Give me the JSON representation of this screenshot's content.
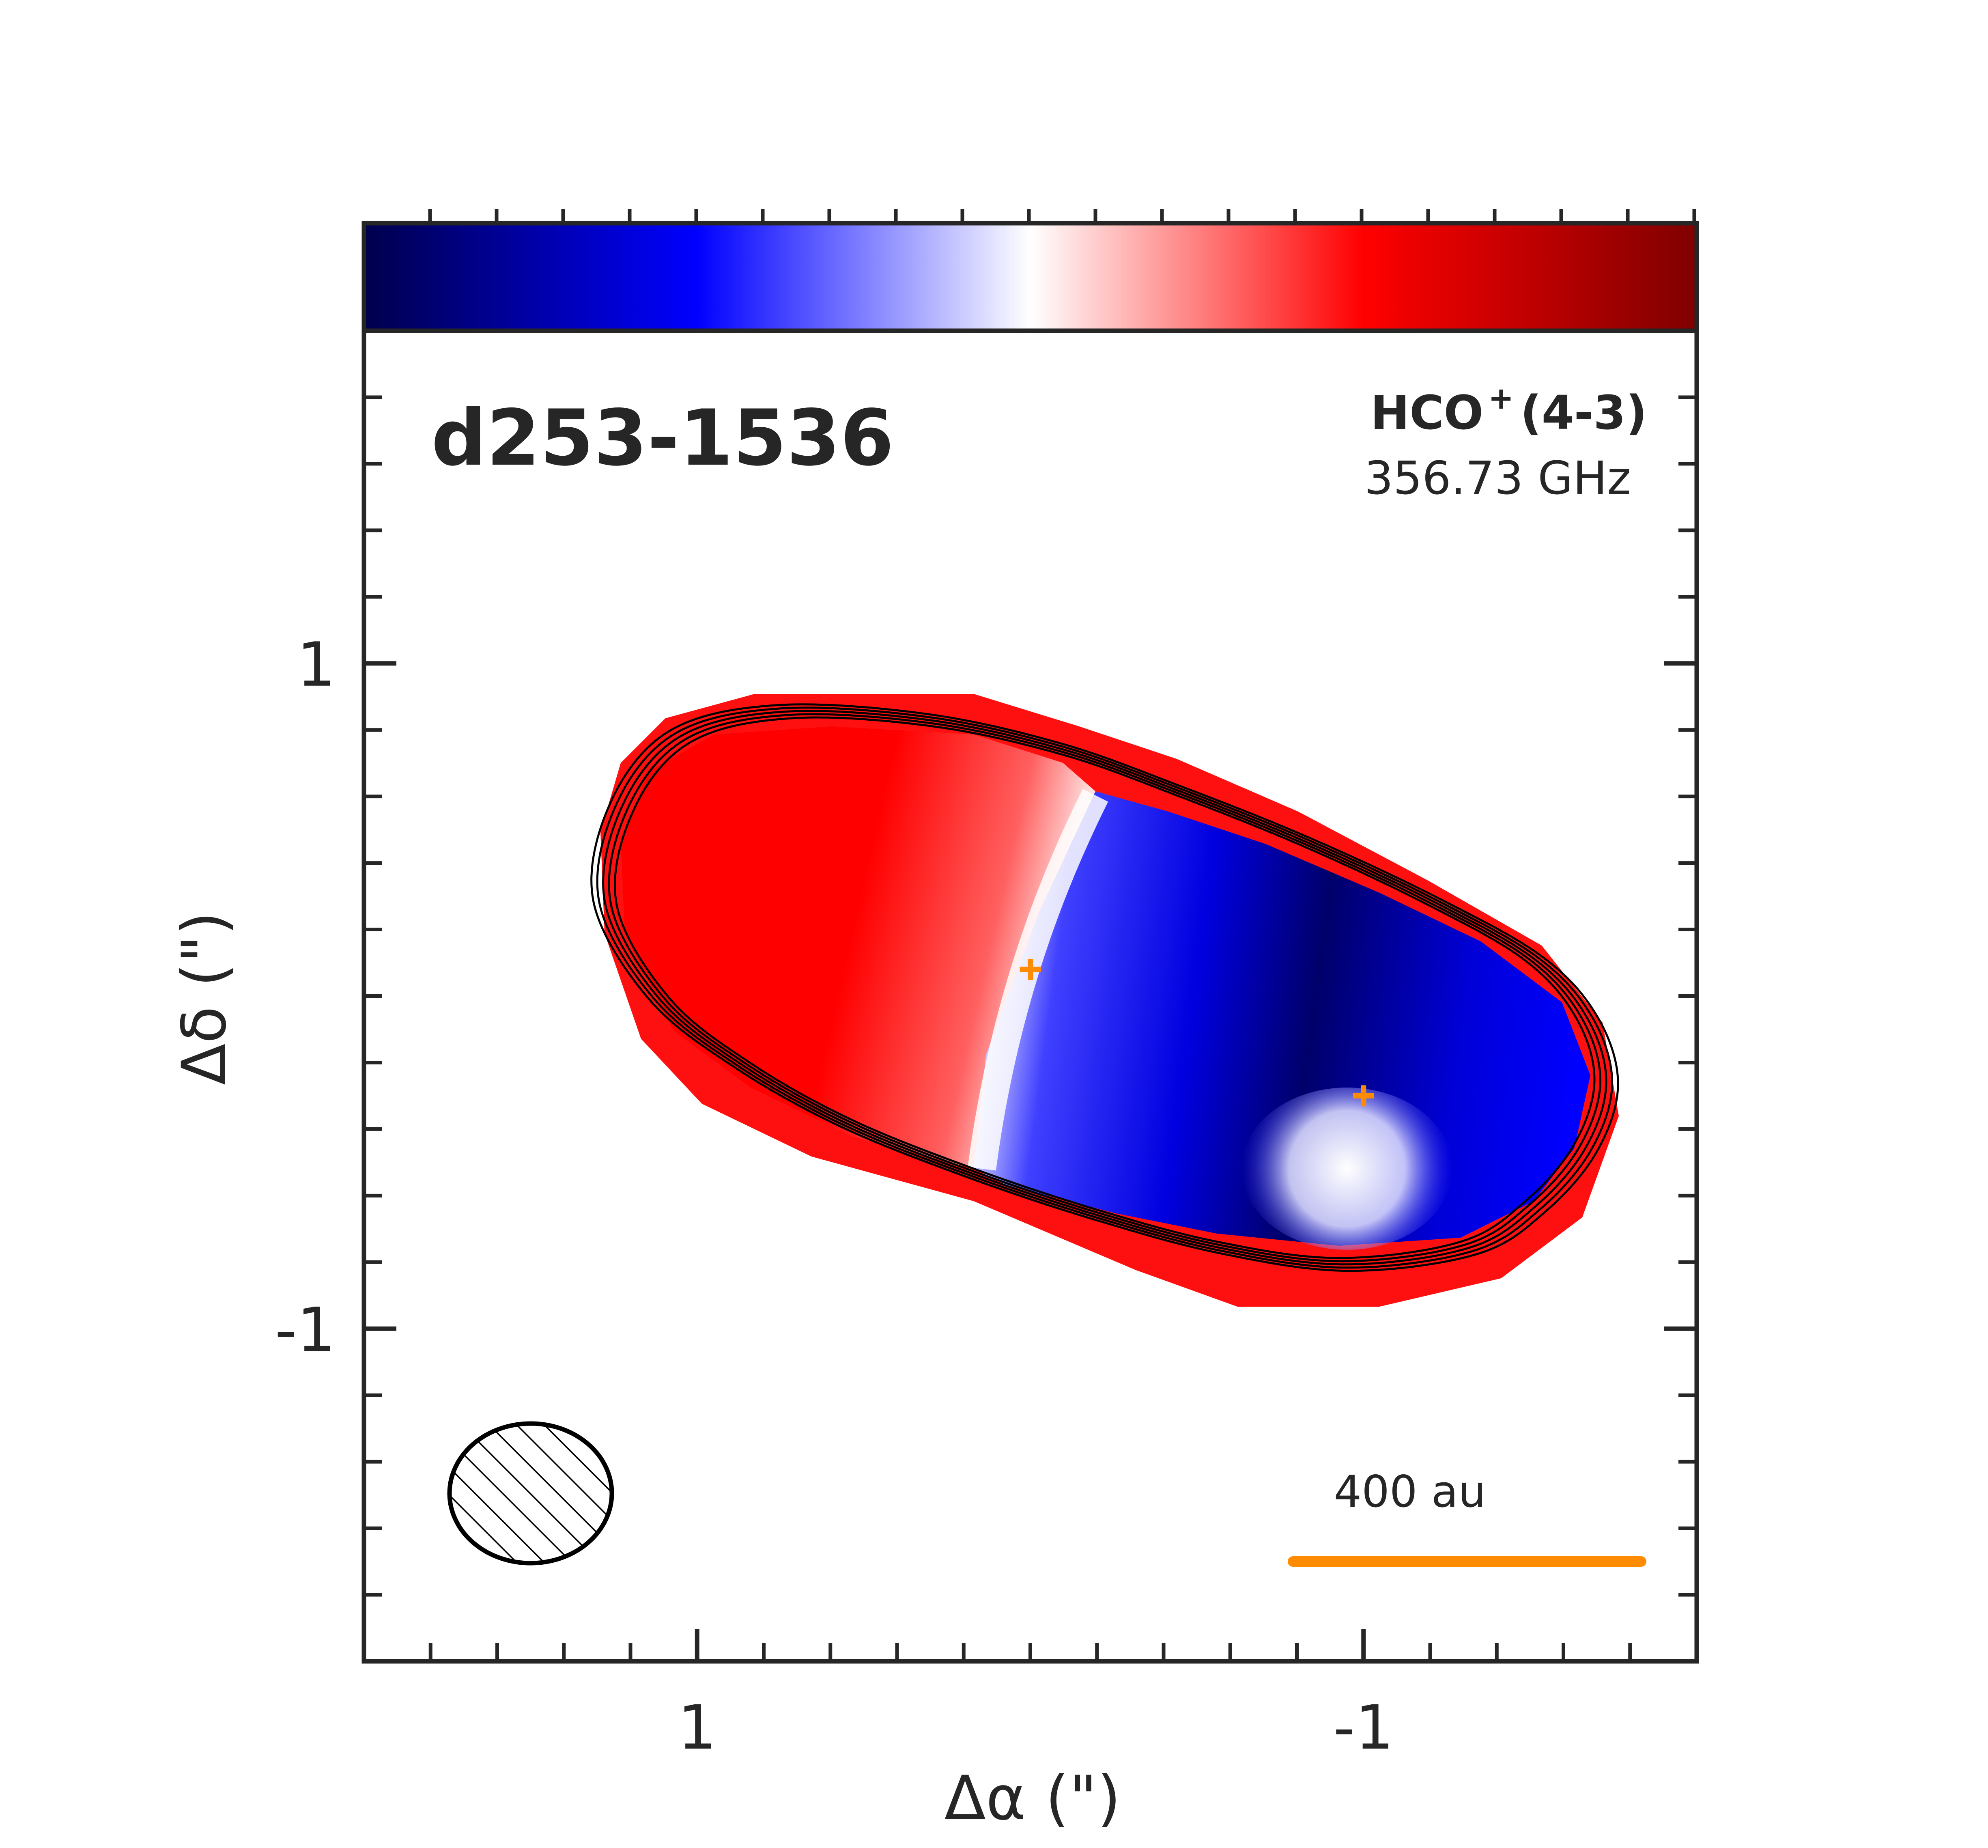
{
  "chart_data": {
    "type": "heatmap",
    "source_name": "d253-1536",
    "line_label_main": "HCO",
    "line_label_sup": "+",
    "line_label_trans": "(4-3)",
    "frequency": "356.73 GHz",
    "xlabel": "Δα (\")",
    "ylabel": "Δδ (\")",
    "xlim": [
      2.0,
      -2.0
    ],
    "ylim": [
      -2.0,
      2.0
    ],
    "x_ticks": [
      1,
      -1
    ],
    "x_tick_labels": [
      "1",
      "-1"
    ],
    "y_ticks": [
      1,
      -1
    ],
    "y_tick_labels": [
      "1",
      "-1"
    ],
    "colorbar": {
      "location": "top",
      "colormap": "seismic",
      "colors": [
        "#00004c",
        "#0000ff",
        "#ffffff",
        "#ff0000",
        "#7f0000"
      ],
      "tick_labels": []
    },
    "colormap_summary": "moment-1 velocity map: red (redshifted) lobe in the east, blue (blueshifted) lobe in the west, white transition near the disk center",
    "contour_levels_count": 5,
    "sources": [
      {
        "dx": 0.0,
        "dy": 0.08,
        "marker": "plus",
        "color": "#ff8c00"
      },
      {
        "dx": -1.0,
        "dy": -0.3,
        "marker": "plus",
        "color": "#ff8c00"
      }
    ],
    "beam": {
      "major_arcsec": 0.5,
      "minor_arcsec": 0.43,
      "position_angle_deg": 90,
      "hatched": true
    },
    "scale_bar": {
      "label": "400 au",
      "color": "#ff8c00"
    }
  }
}
